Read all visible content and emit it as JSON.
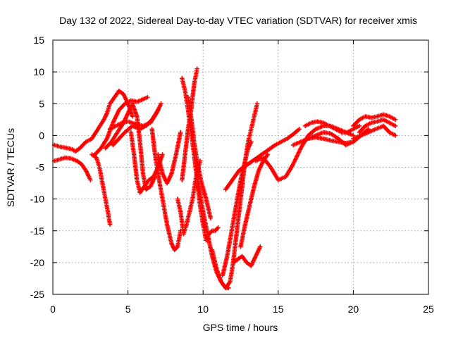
{
  "chart_data": {
    "type": "scatter",
    "title": "Day 132 of 2022, Sidereal Day-to-day VTEC variation (SDTVAR) for receiver xmis",
    "xlabel": "GPS time / hours",
    "ylabel": "SDTVAR / TECUs",
    "xlim": [
      0,
      25
    ],
    "ylim": [
      -25,
      15
    ],
    "xticks": [
      0,
      5,
      10,
      15,
      20,
      25
    ],
    "yticks": [
      -25,
      -20,
      -15,
      -10,
      -5,
      0,
      5,
      10,
      15
    ],
    "grid": true,
    "marker": "plus",
    "color": "#ff0000",
    "series": [
      {
        "x": [
          0.1,
          0.4,
          0.8,
          1.2,
          1.6,
          1.9,
          2.2,
          2.4,
          2.5
        ],
        "y": [
          -4.0,
          -3.8,
          -3.5,
          -3.6,
          -4.0,
          -4.5,
          -5.5,
          -6.5,
          -7.0
        ]
      },
      {
        "x": [
          0.1,
          0.5,
          1.0,
          1.3,
          1.5,
          1.8,
          2.2,
          2.6,
          3.0,
          3.4,
          3.6,
          3.8,
          4.1,
          4.4,
          4.7,
          5.0,
          5.3
        ],
        "y": [
          -1.5,
          -1.8,
          -2.0,
          -2.2,
          -2.5,
          -2.0,
          -1.0,
          -0.5,
          1.0,
          2.5,
          3.5,
          5.0,
          6.0,
          7.0,
          6.5,
          5.0,
          3.0
        ]
      },
      {
        "x": [
          2.6,
          2.9,
          3.1,
          3.3,
          3.5,
          3.7,
          3.8
        ],
        "y": [
          -3.0,
          -3.5,
          -5.0,
          -7.5,
          -10.0,
          -12.5,
          -14.0
        ]
      },
      {
        "x": [
          2.8,
          3.2,
          3.6,
          4.0,
          4.4,
          4.8,
          5.2,
          5.6,
          6.0,
          6.3
        ],
        "y": [
          -3.0,
          -2.0,
          -0.5,
          2.0,
          4.0,
          5.0,
          5.5,
          5.3,
          5.7,
          6.0
        ]
      },
      {
        "x": [
          3.5,
          3.9,
          4.3,
          4.7,
          5.0,
          5.3,
          5.6,
          5.8,
          6.0,
          6.2,
          6.5,
          6.8
        ],
        "y": [
          -2.0,
          -1.0,
          0.5,
          2.0,
          3.5,
          5.0,
          3.0,
          -1.0,
          -6.0,
          -8.5,
          -8.0,
          -6.5
        ]
      },
      {
        "x": [
          3.8,
          4.2,
          4.6,
          5.0,
          5.5,
          6.0,
          6.5,
          6.9,
          7.2
        ],
        "y": [
          1.0,
          1.5,
          2.0,
          2.2,
          1.8,
          1.5,
          2.0,
          3.5,
          5.0
        ]
      },
      {
        "x": [
          4.0,
          4.4,
          4.8,
          5.3,
          5.8,
          6.2,
          6.6,
          7.0
        ],
        "y": [
          -1.5,
          -0.5,
          0.5,
          1.5,
          1.0,
          1.5,
          2.5,
          4.0
        ]
      },
      {
        "x": [
          5.2,
          5.4,
          5.6,
          5.8,
          6.1,
          6.4,
          6.7,
          7.0,
          7.3
        ],
        "y": [
          0.5,
          -3.0,
          -7.0,
          -9.0,
          -8.0,
          -7.0,
          -6.5,
          -5.0,
          -3.0
        ]
      },
      {
        "x": [
          6.6,
          6.8,
          7.0,
          7.3,
          7.6,
          7.9,
          8.1,
          8.3,
          8.5
        ],
        "y": [
          1.0,
          -3.0,
          -6.0,
          -10.0,
          -14.0,
          -17.0,
          -18.0,
          -17.5,
          -15.0
        ]
      },
      {
        "x": [
          7.0,
          7.3,
          7.6,
          7.9,
          8.2,
          8.5
        ],
        "y": [
          -3.0,
          -6.0,
          -7.5,
          -6.0,
          -3.0,
          0.5
        ]
      },
      {
        "x": [
          8.3,
          8.5,
          8.7,
          8.9,
          9.1,
          9.3,
          9.5,
          9.7,
          9.8
        ],
        "y": [
          -10.0,
          -12.0,
          -15.5,
          -14.0,
          -12.0,
          -10.0,
          -7.0,
          -5.0,
          -4.0
        ]
      },
      {
        "x": [
          8.6,
          8.8,
          9.0,
          9.2,
          9.4,
          9.6
        ],
        "y": [
          -7.0,
          -3.0,
          1.0,
          4.0,
          8.0,
          10.5
        ]
      },
      {
        "x": [
          8.6,
          8.8,
          9.0,
          9.2,
          9.4,
          9.6,
          9.8,
          10.0,
          10.2
        ],
        "y": [
          9.0,
          7.0,
          4.0,
          0.5,
          -3.0,
          -7.0,
          -11.0,
          -14.0,
          -16.5
        ]
      },
      {
        "x": [
          9.0,
          9.2,
          9.4,
          9.6,
          9.9,
          10.2,
          10.5
        ],
        "y": [
          6.0,
          3.0,
          -1.0,
          -4.0,
          -7.5,
          -10.0,
          -13.0
        ]
      },
      {
        "x": [
          9.6,
          9.8,
          10.0,
          10.3,
          10.6,
          10.9,
          11.2,
          11.5,
          11.7
        ],
        "y": [
          -6.5,
          -9.0,
          -12.0,
          -15.5,
          -19.0,
          -21.5,
          -23.0,
          -24.0,
          -24.0
        ]
      },
      {
        "x": [
          10.2,
          10.4,
          10.6,
          10.8,
          11.0
        ],
        "y": [
          -16.0,
          -15.5,
          -15.0,
          -15.0,
          -14.5
        ]
      },
      {
        "x": [
          10.6,
          10.9,
          11.2,
          11.5,
          11.8,
          12.0,
          12.2,
          12.4,
          12.6,
          12.8,
          13.0,
          13.2,
          13.4,
          13.6
        ],
        "y": [
          -18.0,
          -21.0,
          -23.0,
          -24.0,
          -23.0,
          -20.0,
          -16.0,
          -12.0,
          -8.0,
          -4.0,
          -1.0,
          1.0,
          3.0,
          5.0
        ]
      },
      {
        "x": [
          11.3,
          11.6,
          11.9,
          12.2,
          12.5,
          12.8,
          13.0,
          13.2
        ],
        "y": [
          -22.0,
          -19.0,
          -15.0,
          -11.0,
          -7.0,
          -4.0,
          -2.0,
          -1.0
        ]
      },
      {
        "x": [
          12.0,
          12.3,
          12.6,
          12.9,
          13.2,
          13.5,
          13.8
        ],
        "y": [
          -20.0,
          -19.5,
          -19.0,
          -20.0,
          -20.5,
          -19.0,
          -17.5
        ]
      },
      {
        "x": [
          12.5,
          12.8,
          13.1,
          13.4,
          13.7,
          14.0,
          14.3
        ],
        "y": [
          -17.5,
          -14.0,
          -11.0,
          -8.0,
          -5.5,
          -4.0,
          -3.0
        ]
      },
      {
        "x": [
          11.5,
          11.8,
          12.1,
          12.4,
          12.7,
          13.0,
          13.3,
          13.6,
          13.9,
          14.2,
          14.5,
          14.8,
          15.2,
          15.6,
          16.0,
          16.4
        ],
        "y": [
          -8.5,
          -7.5,
          -6.5,
          -5.5,
          -5.0,
          -4.5,
          -4.0,
          -3.5,
          -3.0,
          -2.5,
          -2.0,
          -1.5,
          -1.0,
          -0.5,
          0.2,
          1.0
        ]
      },
      {
        "x": [
          13.5,
          14.0,
          14.5,
          15.0,
          15.5,
          16.0,
          16.5,
          17.0,
          17.5,
          18.0,
          18.5,
          19.0,
          19.5,
          20.0
        ],
        "y": [
          -4.0,
          -3.5,
          -5.0,
          -7.0,
          -6.5,
          -4.5,
          -2.0,
          0.0,
          1.0,
          1.5,
          1.5,
          1.0,
          0.5,
          0.0
        ]
      },
      {
        "x": [
          16.0,
          16.5,
          17.0,
          17.5,
          18.0,
          18.5,
          19.0,
          19.5,
          20.0
        ],
        "y": [
          -1.5,
          -1.0,
          -0.5,
          -0.3,
          -0.5,
          -0.8,
          -1.0,
          -1.2,
          -1.0
        ]
      },
      {
        "x": [
          16.8,
          17.2,
          17.6,
          18.0,
          18.4,
          18.8,
          19.2,
          19.6,
          20.0,
          20.4
        ],
        "y": [
          1.5,
          2.0,
          2.2,
          2.0,
          1.5,
          1.0,
          0.5,
          0.5,
          1.0,
          1.5
        ]
      },
      {
        "x": [
          17.0,
          17.5,
          18.0,
          18.5,
          19.0,
          19.5,
          20.0,
          20.5,
          21.0
        ],
        "y": [
          -0.5,
          0.0,
          0.5,
          0.3,
          -0.5,
          -1.5,
          -1.0,
          0.0,
          1.0
        ]
      },
      {
        "x": [
          20.0,
          20.4,
          20.8,
          21.2,
          21.6,
          22.0,
          22.4,
          22.8
        ],
        "y": [
          1.5,
          2.5,
          3.0,
          2.8,
          3.0,
          3.3,
          3.0,
          2.5
        ]
      },
      {
        "x": [
          20.4,
          20.8,
          21.2,
          21.6,
          22.0,
          22.4,
          22.8
        ],
        "y": [
          0.5,
          1.5,
          2.0,
          2.2,
          2.5,
          2.0,
          1.5
        ]
      },
      {
        "x": [
          20.0,
          20.5,
          21.0,
          21.5,
          22.0,
          22.4,
          22.8
        ],
        "y": [
          -0.5,
          0.0,
          0.5,
          1.0,
          1.5,
          0.5,
          0.0
        ]
      }
    ]
  }
}
